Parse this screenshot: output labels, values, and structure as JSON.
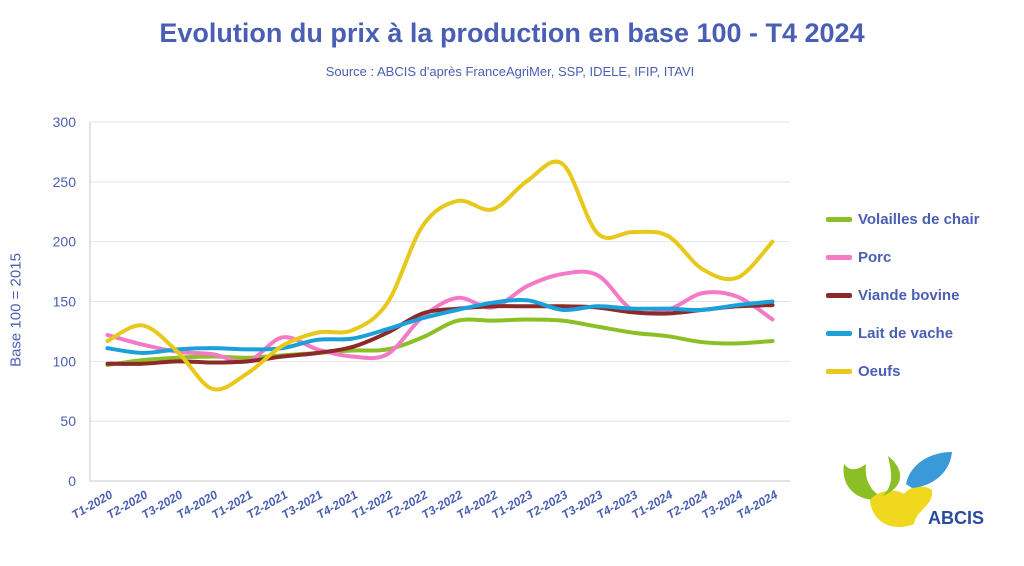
{
  "header": {
    "title": "Evolution du prix à la production en base 100 - T4 2024",
    "source": "Source : ABCIS d'après FranceAgriMer, SSP, IDELE, IFIP, ITAVI"
  },
  "logo": {
    "text": "ABCIS",
    "icon": "abcis-logo-icon"
  },
  "chart_data": {
    "type": "line",
    "title": "Evolution du prix à la production en base 100 - T4 2024",
    "subtitle": "Source : ABCIS d'après FranceAgriMer, SSP, IDELE, IFIP, ITAVI",
    "xlabel": "",
    "ylabel": "Base 100 = 2015",
    "ylim": [
      0,
      300
    ],
    "yticks": [
      0,
      50,
      100,
      150,
      200,
      250,
      300
    ],
    "grid": true,
    "legend": "right",
    "categories": [
      "T1-2020",
      "T2-2020",
      "T3-2020",
      "T4-2020",
      "T1-2021",
      "T2-2021",
      "T3-2021",
      "T4-2021",
      "T1-2022",
      "T2-2022",
      "T3-2022",
      "T4-2022",
      "T1-2023",
      "T2-2023",
      "T3-2023",
      "T4-2023",
      "T1-2024",
      "T2-2024",
      "T3-2024",
      "T4-2024"
    ],
    "series": [
      {
        "name": "Volailles de chair",
        "color": "#8cbf26",
        "values": [
          97,
          101,
          103,
          104,
          103,
          105,
          107,
          109,
          110,
          120,
          134,
          134,
          135,
          134,
          129,
          124,
          121,
          116,
          115,
          117
        ]
      },
      {
        "name": "Porc",
        "color": "#f47ac8",
        "values": [
          122,
          114,
          108,
          106,
          100,
          120,
          110,
          104,
          106,
          137,
          153,
          145,
          163,
          173,
          172,
          143,
          143,
          157,
          154,
          135
        ]
      },
      {
        "name": "Viande bovine",
        "color": "#8b2a2a",
        "values": [
          98,
          98,
          100,
          99,
          100,
          104,
          107,
          112,
          124,
          140,
          144,
          146,
          146,
          146,
          145,
          141,
          140,
          143,
          146,
          147
        ]
      },
      {
        "name": "Lait de vache",
        "color": "#1ba1d9",
        "values": [
          111,
          107,
          110,
          111,
          110,
          111,
          118,
          119,
          127,
          136,
          143,
          149,
          151,
          143,
          146,
          144,
          144,
          143,
          147,
          150
        ]
      },
      {
        "name": "Oeufs",
        "color": "#e8c81a",
        "values": [
          117,
          130,
          108,
          77,
          90,
          113,
          124,
          126,
          149,
          213,
          234,
          227,
          251,
          265,
          207,
          208,
          205,
          177,
          170,
          200
        ]
      }
    ]
  }
}
